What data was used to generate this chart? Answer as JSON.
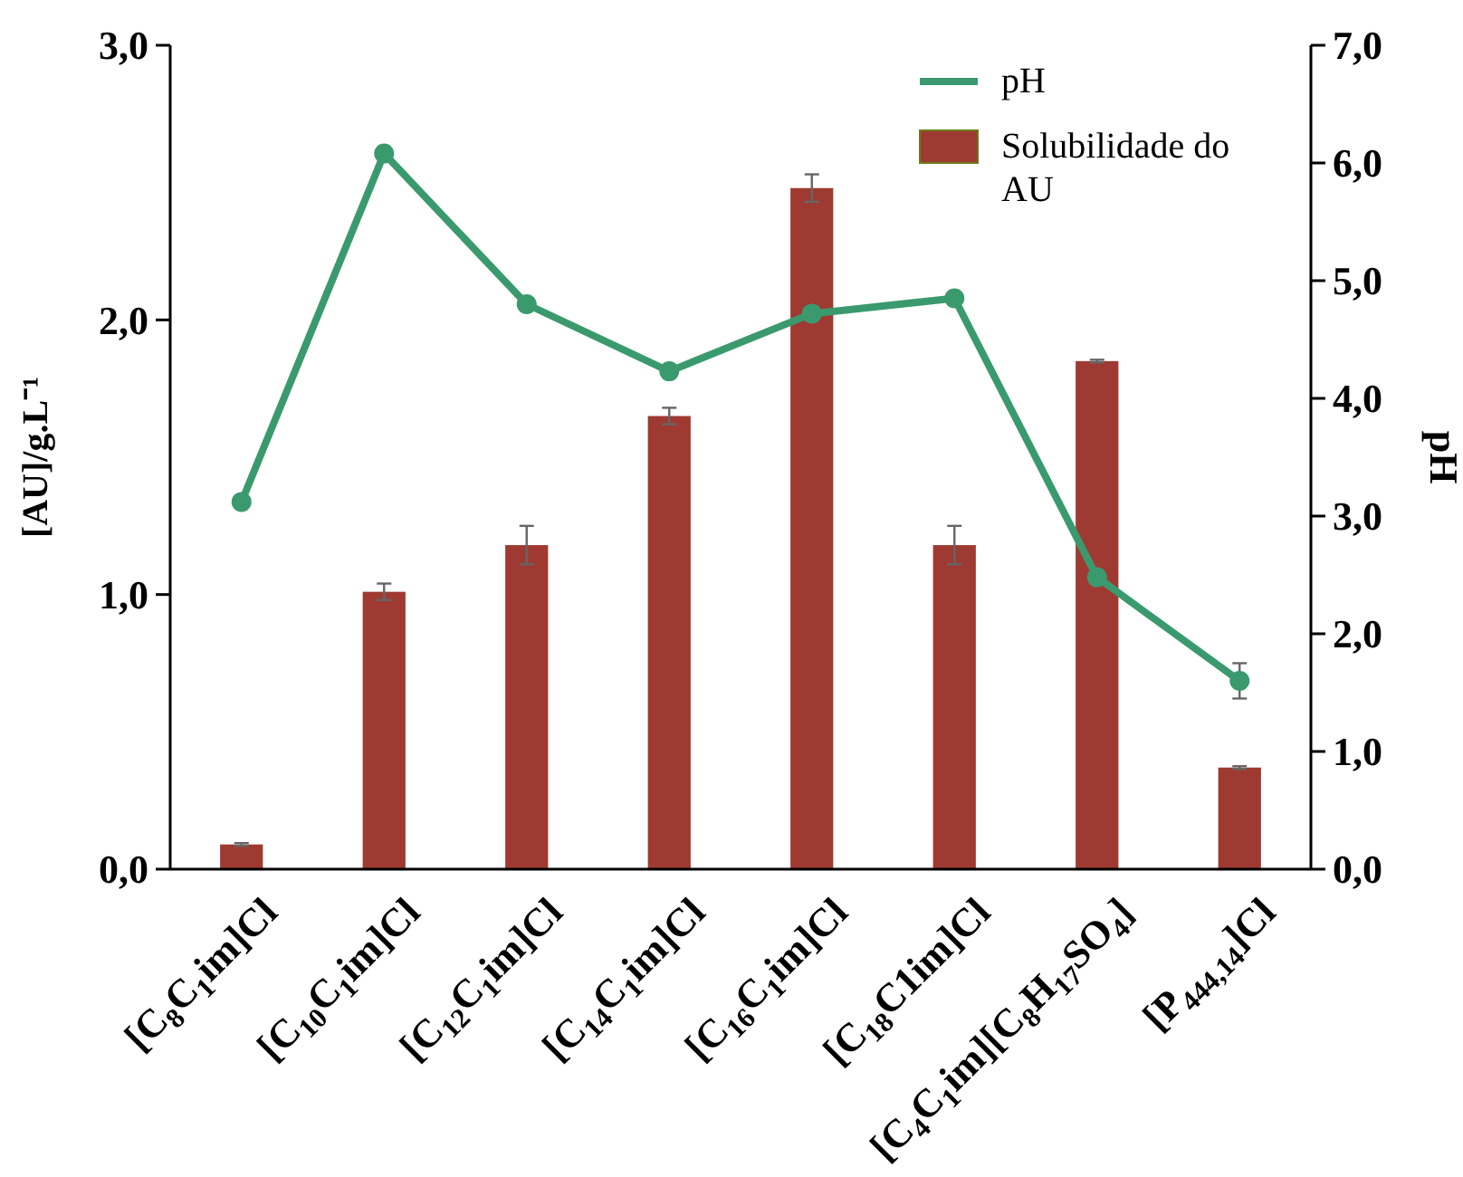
{
  "chart_data": {
    "type": "bar",
    "ylabel": "[AU]/g.L⁻¹",
    "y2label": "pH",
    "categories": [
      "[C$_{8}$C$_{1}$im]Cl",
      "[C$_{10}$C$_{1}$im]Cl",
      "[C$_{12}$C$_{1}$im]Cl",
      "[C$_{14}$C$_{1}$im]Cl",
      "[C$_{16}$C$_{1}$im]Cl",
      "[C$_{18}$C1im]Cl",
      "[C$_{4}$C$_{1}$im][C$_{8}$H$_{17}$SO$_{4}$]",
      "[P$_{444,14}$]Cl"
    ],
    "series": [
      {
        "name": "pH",
        "type": "line",
        "axis": "y2",
        "color": "#3a9a6e",
        "marker": "circle",
        "values": [
          3.12,
          6.08,
          4.8,
          4.23,
          4.72,
          4.85,
          2.48,
          1.6
        ],
        "errors": [
          null,
          null,
          0.05,
          null,
          null,
          null,
          null,
          0.15
        ]
      },
      {
        "name": "Solubilidade do AU",
        "color": "#9e3a31",
        "values": [
          0.09,
          1.01,
          1.18,
          1.65,
          2.48,
          1.18,
          1.85,
          0.37
        ],
        "errors": [
          0.005,
          0.03,
          0.07,
          0.03,
          0.05,
          0.07,
          0.005,
          0.005
        ]
      }
    ],
    "ylim": [
      0,
      3
    ],
    "yticks": [
      {
        "value": 0,
        "label": "0,0"
      },
      {
        "value": 1,
        "label": "1,0"
      },
      {
        "value": 2,
        "label": "2,0"
      },
      {
        "value": 3,
        "label": "3,0"
      }
    ],
    "y2lim": [
      0,
      7
    ],
    "y2ticks": [
      {
        "value": 0,
        "label": "0,0"
      },
      {
        "value": 1,
        "label": "1,0"
      },
      {
        "value": 2,
        "label": "2,0"
      },
      {
        "value": 3,
        "label": "3,0"
      },
      {
        "value": 4,
        "label": "4,0"
      },
      {
        "value": 5,
        "label": "5,0"
      },
      {
        "value": 6,
        "label": "6,0"
      },
      {
        "value": 7,
        "label": "7,0"
      }
    ],
    "legend": "top right"
  }
}
